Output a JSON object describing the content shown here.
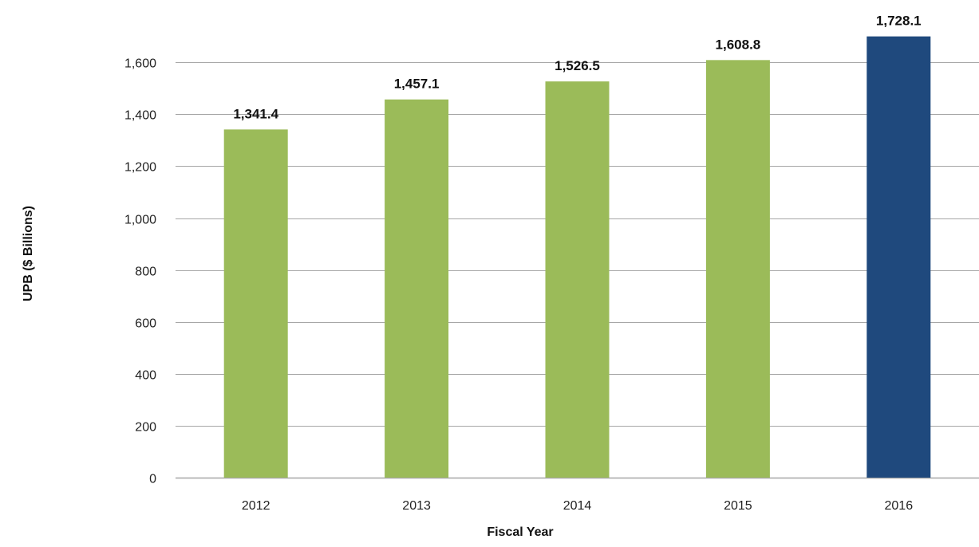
{
  "chart_data": {
    "type": "bar",
    "title": "",
    "xlabel": "Fiscal Year",
    "ylabel": "UPB ($ Billions)",
    "categories": [
      "2012",
      "2013",
      "2014",
      "2015",
      "2016"
    ],
    "values": [
      1341.4,
      1457.1,
      1526.5,
      1608.8,
      1728.1
    ],
    "data_labels": [
      "1,341.4",
      "1,457.1",
      "1,526.5",
      "1,608.8",
      "1,728.1"
    ],
    "ylim": [
      0,
      1700
    ],
    "yticks": [
      0,
      200,
      400,
      600,
      800,
      1000,
      1200,
      1400,
      1600
    ],
    "ytick_labels": [
      "0",
      "200",
      "400",
      "600",
      "800",
      "1,000",
      "1,200",
      "1,400",
      "1,600"
    ],
    "grid": true,
    "legend": "none",
    "colors": {
      "bar": "#9bbb59",
      "highlight_bar": "#1f497d",
      "gridline": "#a6a6a6",
      "axis": "#a6a6a6"
    },
    "highlight_index": 4
  }
}
